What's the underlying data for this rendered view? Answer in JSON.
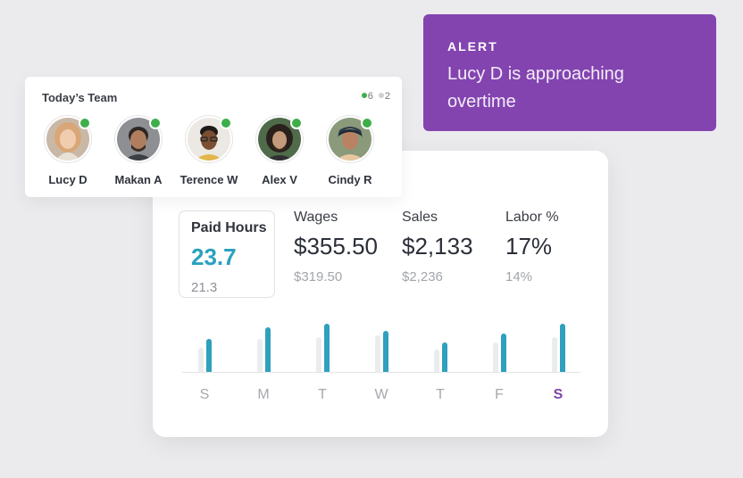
{
  "alert": {
    "title": "ALERT",
    "message": "Lucy D is approaching overtime",
    "color": "#8344b0"
  },
  "team": {
    "title": "Today’s Team",
    "online_count": "6",
    "offline_count": "2",
    "members": [
      {
        "name": "Lucy D",
        "status": "online"
      },
      {
        "name": "Makan A",
        "status": "online"
      },
      {
        "name": "Terence W",
        "status": "online"
      },
      {
        "name": "Alex V",
        "status": "online"
      },
      {
        "name": "Cindy R",
        "status": "online"
      }
    ]
  },
  "metrics": {
    "stats": [
      {
        "label": "Paid Hours",
        "value": "23.7",
        "previous": "21.3",
        "selected": true
      },
      {
        "label": "Wages",
        "value": "$355.50",
        "previous": "$319.50"
      },
      {
        "label": "Sales",
        "value": "$2,133",
        "previous": "$2,236"
      },
      {
        "label": "Labor %",
        "value": "17%",
        "previous": "14%"
      }
    ],
    "accent": "#2fa0bd",
    "active_day_color": "#7d45a8"
  },
  "chart_data": {
    "type": "bar",
    "categories": [
      "S",
      "M",
      "T",
      "W",
      "T",
      "F",
      "S"
    ],
    "series": [
      {
        "values": [
          14,
          19,
          20,
          21,
          13,
          17,
          20
        ]
      },
      {
        "values": [
          19,
          26,
          28,
          24,
          17,
          22,
          28
        ]
      }
    ],
    "active_category_index": 6,
    "ylim": [
      0,
      30
    ]
  }
}
